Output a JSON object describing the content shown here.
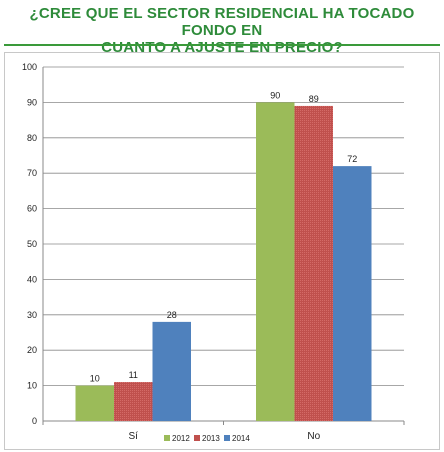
{
  "title_line1": "¿CREE QUE EL SECTOR RESIDENCIAL HA TOCADO FONDO EN",
  "title_line2": "CUANTO A AJUSTE EN PRECIO?",
  "chart_data": {
    "type": "bar",
    "title": "¿CREE QUE EL SECTOR RESIDENCIAL HA TOCADO FONDO EN CUANTO A AJUSTE EN PRECIO?",
    "categories": [
      "Sí",
      "No"
    ],
    "series": [
      {
        "name": "2012",
        "values": [
          10,
          90
        ],
        "color": "#9bbb59"
      },
      {
        "name": "2013",
        "values": [
          11,
          89
        ],
        "color": "#c0504d"
      },
      {
        "name": "2014",
        "values": [
          28,
          72
        ],
        "color": "#4f81bd"
      }
    ],
    "ylim": [
      0,
      100
    ],
    "yticks": [
      0,
      10,
      20,
      30,
      40,
      50,
      60,
      70,
      80,
      90,
      100
    ],
    "grid": true,
    "legend": "bottom"
  }
}
